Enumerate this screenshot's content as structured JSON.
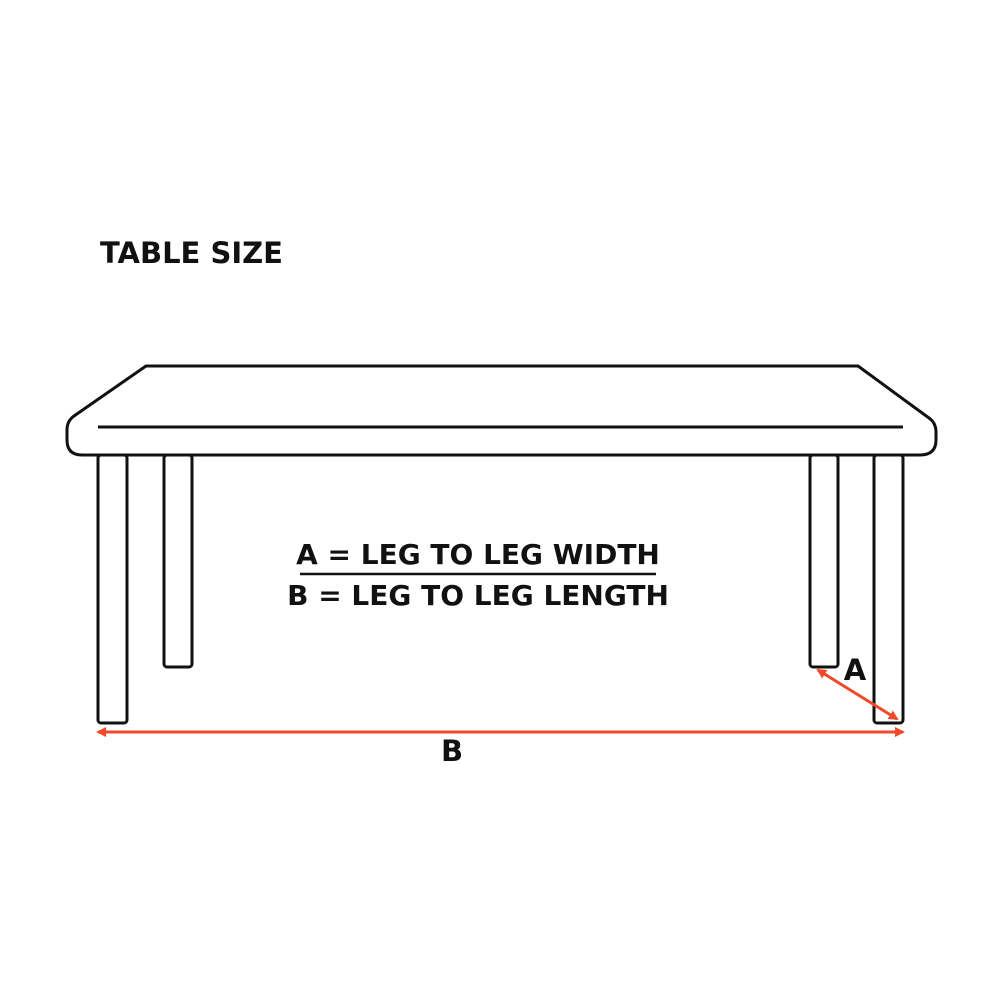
{
  "title": "TABLE SIZE",
  "legend": {
    "line_a": "A = LEG TO LEG WIDTH",
    "line_b": "B = LEG TO LEG LENGTH"
  },
  "dimensions": {
    "a_label": "A",
    "b_label": "B"
  },
  "colors": {
    "outline": "#111111",
    "dimension_arrow": "#f04a2a",
    "background": "#ffffff"
  }
}
